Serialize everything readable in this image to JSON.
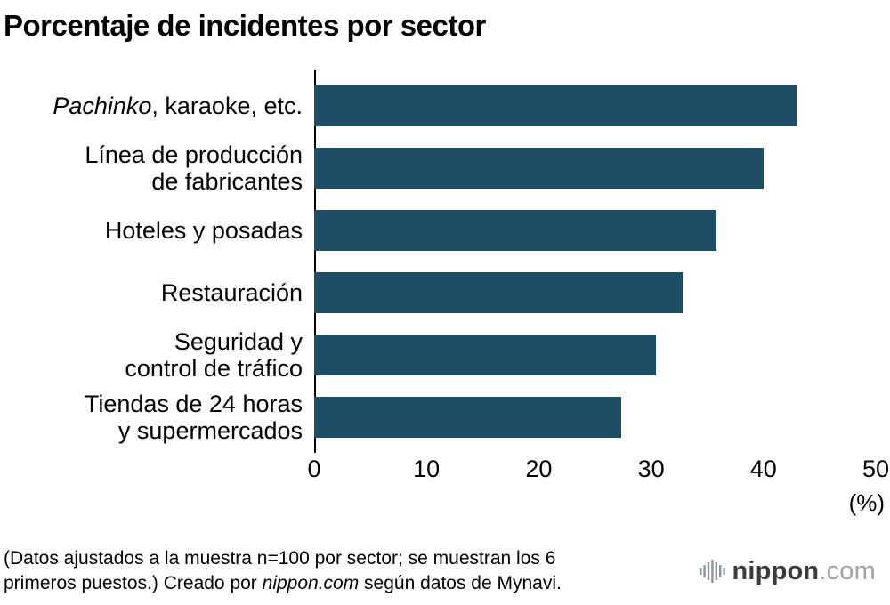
{
  "chart_data": {
    "type": "bar",
    "orientation": "horizontal",
    "title": "Porcentaje de incidentes por sector",
    "categories": [
      {
        "italic": "Pachinko",
        "text": ", karaoke, etc."
      },
      {
        "text": "Línea de producción\nde fabricantes"
      },
      {
        "text": "Hoteles y posadas"
      },
      {
        "text": "Restauración"
      },
      {
        "text": "Seguridad y\ncontrol de tráfico"
      },
      {
        "text": "Tiendas de 24 horas\ny supermercados"
      }
    ],
    "values": [
      43,
      40,
      35.8,
      32.8,
      30.4,
      27.3
    ],
    "xlim": [
      0,
      50
    ],
    "xticks": [
      0,
      10,
      20,
      30,
      40,
      50
    ],
    "x_unit": "(%)",
    "xlabel": "",
    "ylabel": "",
    "grid": false,
    "legend": "none",
    "bar_color": "#1e4d66"
  },
  "footnote": {
    "prefix": "(Datos ajustados a la muestra n=100 por sector; se muestran los 6\nprimeros puestos.) Creado por ",
    "italic": "nippon.com",
    "suffix": " según datos de Mynavi."
  },
  "logo": {
    "icon": "sound-bars-icon",
    "name": "nippon",
    "suffix": ".com"
  }
}
